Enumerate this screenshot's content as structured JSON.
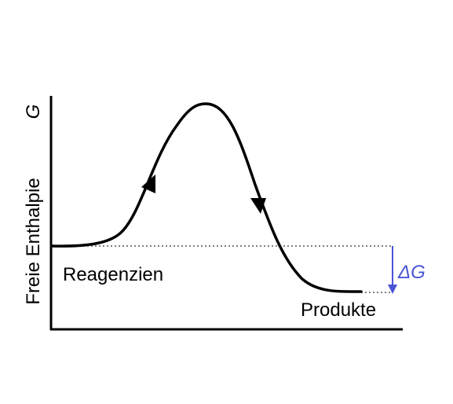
{
  "diagram": {
    "y_axis_label": "Freie Enthalpie",
    "y_axis_symbol": "G",
    "reactants_label": "Reagenzien",
    "products_label": "Produkte",
    "delta_label": "ΔG",
    "colors": {
      "curve": "#000000",
      "axis": "#000000",
      "reference_line": "#7f7f7f",
      "delta_arrow": "#4a55d6",
      "delta_text": "#4a55d6"
    }
  }
}
